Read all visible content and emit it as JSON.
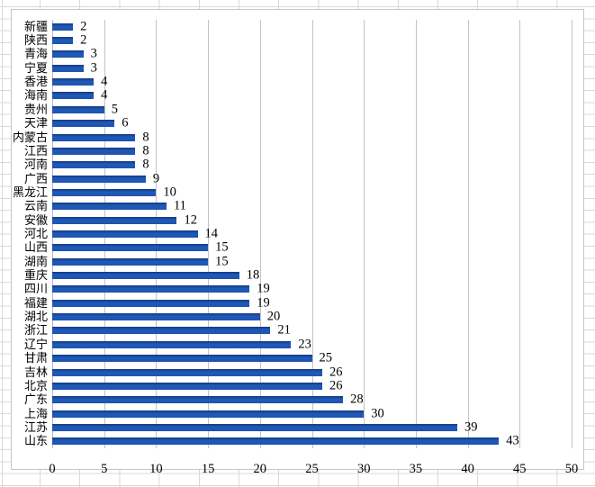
{
  "chart_data": {
    "type": "bar",
    "orientation": "horizontal",
    "categories": [
      "新疆",
      "陕西",
      "青海",
      "宁夏",
      "香港",
      "海南",
      "贵州",
      "天津",
      "内蒙古",
      "江西",
      "河南",
      "广西",
      "黑龙江",
      "云南",
      "安徽",
      "河北",
      "山西",
      "湖南",
      "重庆",
      "四川",
      "福建",
      "湖北",
      "浙江",
      "辽宁",
      "甘肃",
      "吉林",
      "北京",
      "广东",
      "上海",
      "江苏",
      "山东"
    ],
    "values": [
      2,
      2,
      3,
      3,
      4,
      4,
      5,
      6,
      8,
      8,
      8,
      9,
      10,
      11,
      12,
      14,
      15,
      15,
      18,
      19,
      19,
      20,
      21,
      23,
      25,
      26,
      26,
      28,
      30,
      39,
      43
    ],
    "xlim": [
      0,
      50
    ],
    "x_ticks": [
      0,
      5,
      10,
      15,
      20,
      25,
      30,
      35,
      40,
      45,
      50
    ],
    "data_labels_shown": true,
    "grid": "vertical-gridlines-every-5",
    "legend": "none",
    "bar_color": "#1d54b0",
    "gridline_color": "#c3c3c3",
    "category_labels_overflowing_left": [
      "内蒙古",
      "黑龙江"
    ]
  },
  "colors": {
    "bar_fill": "#1d54b0",
    "bar_edge": "#143e88",
    "plot_gridline": "#c3c3c3",
    "sheet_gridline": "#d9d9d9",
    "chart_border": "#c6c6c6",
    "text": "#000000",
    "background": "#ffffff"
  }
}
